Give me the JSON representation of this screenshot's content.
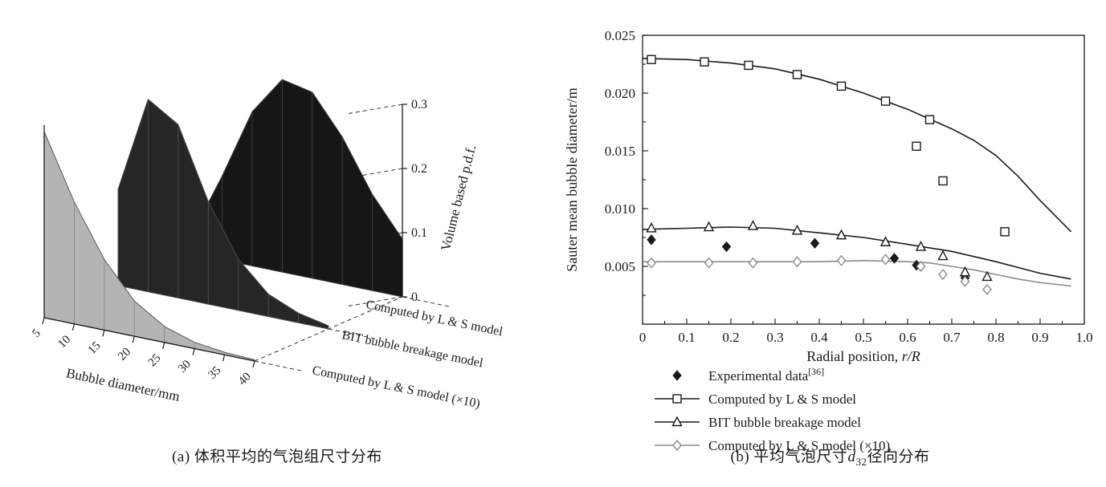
{
  "colors": {
    "ink": "#1a1a1a",
    "gray_line": "#8c8c8c",
    "white": "#ffffff"
  },
  "captions": {
    "a": "(a) 体积平均的气泡组尺寸分布",
    "b_prefix": "(b) 平均气泡尺寸",
    "b_var": "d",
    "b_sub": "32",
    "b_suffix": "径向分布"
  },
  "chart_data": [
    {
      "type": "area",
      "projection": "3d-waterfall",
      "xlabel": "Bubble diameter/mm",
      "zlabel": "Volume based p.d.f.",
      "categories": [
        5,
        10,
        15,
        20,
        25,
        30,
        35,
        40
      ],
      "x_tick_labels": [
        "5",
        "10",
        "15",
        "20",
        "25",
        "30",
        "35",
        "40"
      ],
      "z_ticks": [
        {
          "v": 0,
          "label": "0"
        },
        {
          "v": 0.1,
          "label": "0.1"
        },
        {
          "v": 0.2,
          "label": "0.2"
        },
        {
          "v": 0.3,
          "label": "0.3"
        }
      ],
      "zlim": [
        0,
        0.3
      ],
      "grid": true,
      "series": [
        {
          "name": "Computed by L & S model",
          "depth": 0,
          "fill": "#161616",
          "edge": "#3c3c3c",
          "facet": "#4a4a4a",
          "values": [
            0.03,
            0.13,
            0.24,
            0.3,
            0.29,
            0.23,
            0.15,
            0.09
          ]
        },
        {
          "name": "BIT bubble breakage model",
          "depth": 1,
          "fill": "#262626",
          "edge": "#4a4a4a",
          "facet": "#555555",
          "values": [
            0.15,
            0.3,
            0.27,
            0.16,
            0.08,
            0.035,
            0.015,
            0.005
          ]
        },
        {
          "name": "Computed by L & S model (×10)",
          "depth": 2,
          "fill": "#b4b4b4",
          "edge": "#5a5a5a",
          "facet": "#828282",
          "values": [
            0.29,
            0.19,
            0.11,
            0.055,
            0.025,
            0.01,
            0.004,
            0.002
          ]
        }
      ]
    },
    {
      "type": "line",
      "xlabel": {
        "prefix": "Radial position, ",
        "italic": "r/R"
      },
      "ylabel": "Sauter mean bubble diameter/m",
      "xlim": [
        0,
        1.0
      ],
      "ylim": [
        0,
        0.025
      ],
      "grid": false,
      "legend_position": "below",
      "x_ticks": [
        {
          "v": 0,
          "label": "0"
        },
        {
          "v": 0.1,
          "label": "0.1"
        },
        {
          "v": 0.2,
          "label": "0.2"
        },
        {
          "v": 0.3,
          "label": "0.3"
        },
        {
          "v": 0.4,
          "label": "0.4"
        },
        {
          "v": 0.5,
          "label": "0.5"
        },
        {
          "v": 0.6,
          "label": "0.6"
        },
        {
          "v": 0.7,
          "label": "0.7"
        },
        {
          "v": 0.8,
          "label": "0.8"
        },
        {
          "v": 0.9,
          "label": "0.9"
        },
        {
          "v": 1.0,
          "label": "1.0"
        }
      ],
      "y_ticks": [
        {
          "v": 0.005,
          "label": "0.005"
        },
        {
          "v": 0.01,
          "label": "0.010"
        },
        {
          "v": 0.015,
          "label": "0.015"
        },
        {
          "v": 0.02,
          "label": "0.020"
        },
        {
          "v": 0.025,
          "label": "0.025"
        }
      ],
      "series": [
        {
          "name": "Experimental data",
          "superscript": "[36]",
          "marker": "diamond-filled",
          "color": "#1a1a1a",
          "has_line": false,
          "points": [
            [
              0.02,
              0.0073
            ],
            [
              0.19,
              0.0067
            ],
            [
              0.39,
              0.007
            ],
            [
              0.57,
              0.0057
            ],
            [
              0.62,
              0.0051
            ],
            [
              0.73,
              0.004
            ]
          ]
        },
        {
          "name": "Computed by L & S model",
          "marker": "square-open",
          "color": "#1a1a1a",
          "has_line": true,
          "line": [
            [
              0,
              0.023
            ],
            [
              0.1,
              0.0229
            ],
            [
              0.2,
              0.0226
            ],
            [
              0.3,
              0.0221
            ],
            [
              0.4,
              0.0212
            ],
            [
              0.5,
              0.02
            ],
            [
              0.6,
              0.0186
            ],
            [
              0.7,
              0.0169
            ],
            [
              0.75,
              0.0159
            ],
            [
              0.8,
              0.0146
            ],
            [
              0.85,
              0.0128
            ],
            [
              0.9,
              0.0107
            ],
            [
              0.97,
              0.008
            ]
          ],
          "points": [
            [
              0.02,
              0.0229
            ],
            [
              0.14,
              0.0227
            ],
            [
              0.24,
              0.0224
            ],
            [
              0.35,
              0.0216
            ],
            [
              0.45,
              0.0206
            ],
            [
              0.55,
              0.0193
            ],
            [
              0.65,
              0.0177
            ],
            [
              0.62,
              0.0154
            ],
            [
              0.68,
              0.0124
            ],
            [
              0.82,
              0.008
            ]
          ]
        },
        {
          "name": "BIT bubble breakage model",
          "marker": "triangle-open",
          "color": "#1a1a1a",
          "has_line": true,
          "line": [
            [
              0,
              0.0082
            ],
            [
              0.1,
              0.0083
            ],
            [
              0.2,
              0.0084
            ],
            [
              0.3,
              0.0083
            ],
            [
              0.4,
              0.0079
            ],
            [
              0.5,
              0.0075
            ],
            [
              0.6,
              0.0069
            ],
            [
              0.7,
              0.0063
            ],
            [
              0.8,
              0.0054
            ],
            [
              0.9,
              0.0044
            ],
            [
              0.97,
              0.0039
            ]
          ],
          "points": [
            [
              0.02,
              0.0083
            ],
            [
              0.15,
              0.0084
            ],
            [
              0.25,
              0.0085
            ],
            [
              0.35,
              0.0081
            ],
            [
              0.45,
              0.0077
            ],
            [
              0.55,
              0.0071
            ],
            [
              0.63,
              0.0067
            ],
            [
              0.68,
              0.0059
            ],
            [
              0.73,
              0.0045
            ],
            [
              0.78,
              0.0041
            ]
          ]
        },
        {
          "name": "Computed by L & S model (×10)",
          "marker": "diamond-open",
          "color": "#8c8c8c",
          "has_line": true,
          "line": [
            [
              0,
              0.0054
            ],
            [
              0.1,
              0.0054
            ],
            [
              0.2,
              0.0054
            ],
            [
              0.3,
              0.0054
            ],
            [
              0.4,
              0.0054
            ],
            [
              0.5,
              0.0055
            ],
            [
              0.6,
              0.0054
            ],
            [
              0.65,
              0.0053
            ],
            [
              0.7,
              0.005
            ],
            [
              0.75,
              0.0047
            ],
            [
              0.8,
              0.0043
            ],
            [
              0.85,
              0.0039
            ],
            [
              0.9,
              0.0036
            ],
            [
              0.97,
              0.0033
            ]
          ],
          "points": [
            [
              0.02,
              0.0053
            ],
            [
              0.15,
              0.0053
            ],
            [
              0.25,
              0.0053
            ],
            [
              0.35,
              0.0054
            ],
            [
              0.45,
              0.0055
            ],
            [
              0.55,
              0.0056
            ],
            [
              0.63,
              0.005
            ],
            [
              0.68,
              0.0043
            ],
            [
              0.73,
              0.0037
            ],
            [
              0.78,
              0.003
            ]
          ]
        }
      ]
    }
  ]
}
